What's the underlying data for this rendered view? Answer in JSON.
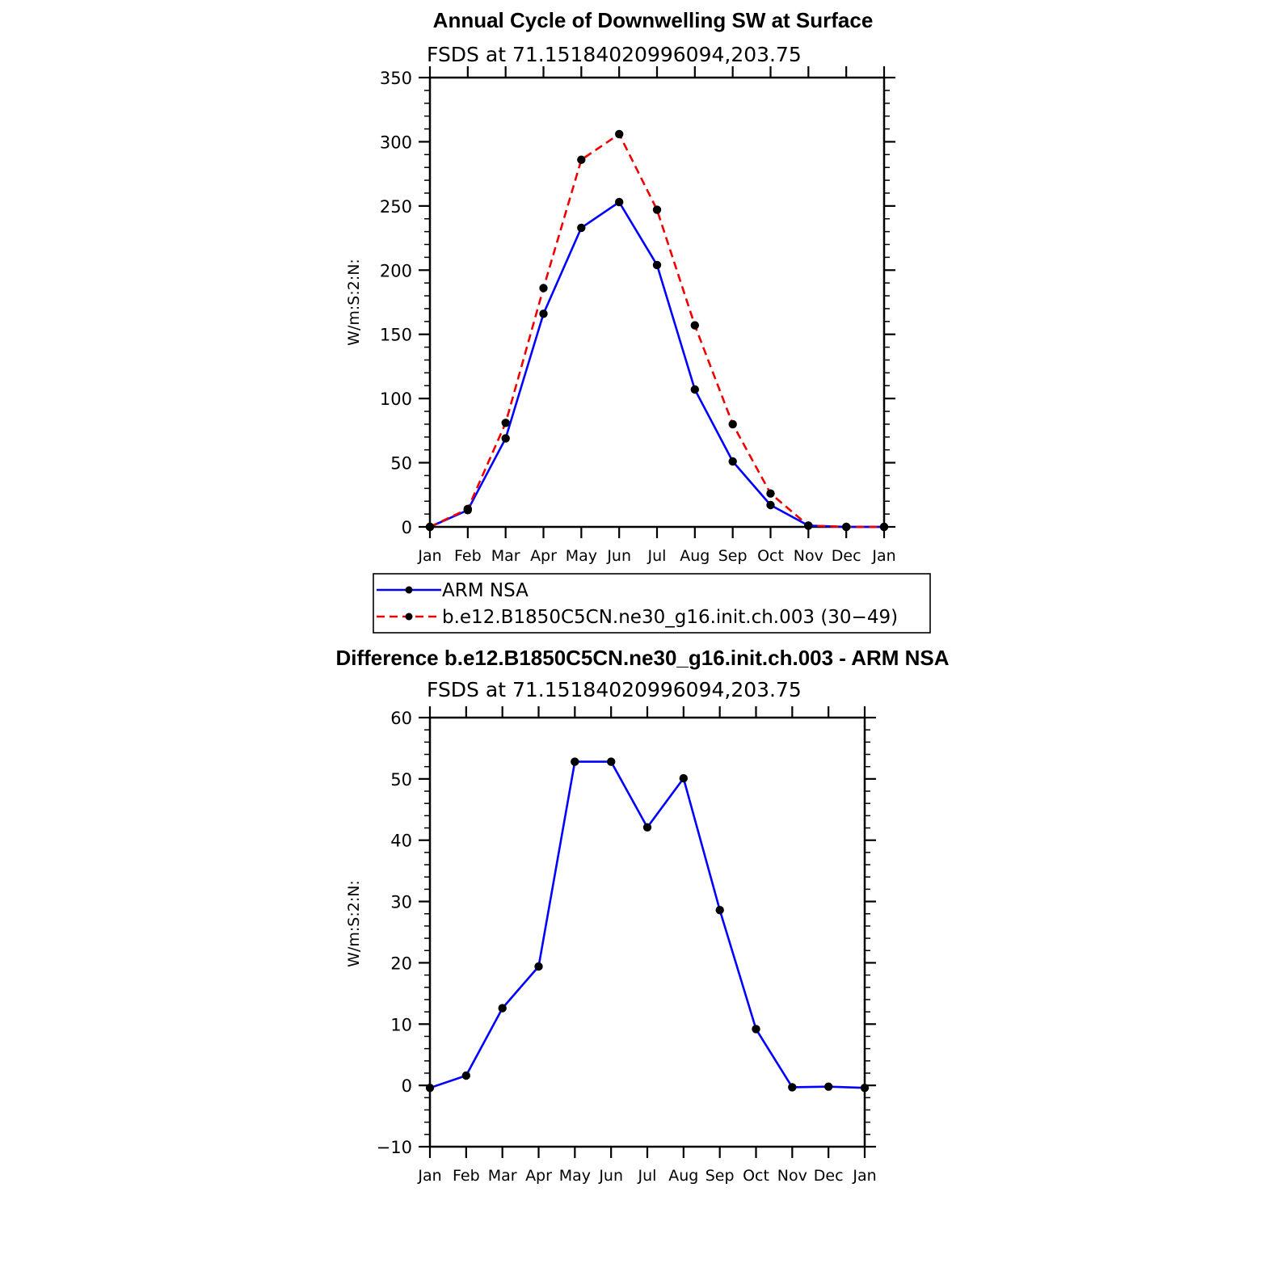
{
  "colors": {
    "obs": "#0000ff",
    "model": "#ee0000",
    "marker": "#000000",
    "axis": "#000000"
  },
  "chart_data": [
    {
      "type": "line",
      "title": "Annual Cycle of Downwelling SW at Surface",
      "subtitle": "FSDS at 71.15184020996094,203.75",
      "ylabel": "W/m:S:2:N:",
      "xlabel": "",
      "categories": [
        "Jan",
        "Feb",
        "Mar",
        "Apr",
        "May",
        "Jun",
        "Jul",
        "Aug",
        "Sep",
        "Oct",
        "Nov",
        "Dec",
        "Jan"
      ],
      "ylim": [
        0,
        350
      ],
      "yticks": [
        0,
        50,
        100,
        150,
        200,
        250,
        300,
        350
      ],
      "series": [
        {
          "name": "ARM NSA",
          "style": "solid",
          "color": "#0000ff",
          "values": [
            0,
            13,
            69,
            166,
            233,
            253,
            204,
            107,
            51,
            17,
            1,
            0,
            0
          ]
        },
        {
          "name": "b.e12.B1850C5CN.ne30_g16.init.ch.003 (30−49)",
          "style": "dashed",
          "color": "#ee0000",
          "values": [
            0,
            14,
            81,
            186,
            286,
            306,
            247,
            157,
            80,
            26,
            1,
            0,
            0
          ]
        }
      ],
      "legend": "below"
    },
    {
      "type": "line",
      "title": "Difference b.e12.B1850C5CN.ne30_g16.init.ch.003 - ARM NSA",
      "subtitle": "FSDS at 71.15184020996094,203.75",
      "ylabel": "W/m:S:2:N:",
      "xlabel": "",
      "categories": [
        "Jan",
        "Feb",
        "Mar",
        "Apr",
        "May",
        "Jun",
        "Jul",
        "Aug",
        "Sep",
        "Oct",
        "Nov",
        "Dec",
        "Jan"
      ],
      "ylim": [
        -10,
        60
      ],
      "yticks": [
        -10,
        0,
        10,
        20,
        30,
        40,
        50,
        60
      ],
      "ytick_labels": [
        "−10",
        "0",
        "10",
        "20",
        "30",
        "40",
        "50",
        "60"
      ],
      "series": [
        {
          "style": "solid",
          "color": "#0000ff",
          "values": [
            -0.4,
            1.6,
            12.6,
            19.4,
            52.8,
            52.8,
            42.1,
            50.1,
            28.6,
            9.2,
            -0.3,
            -0.2,
            -0.4
          ]
        }
      ]
    }
  ]
}
